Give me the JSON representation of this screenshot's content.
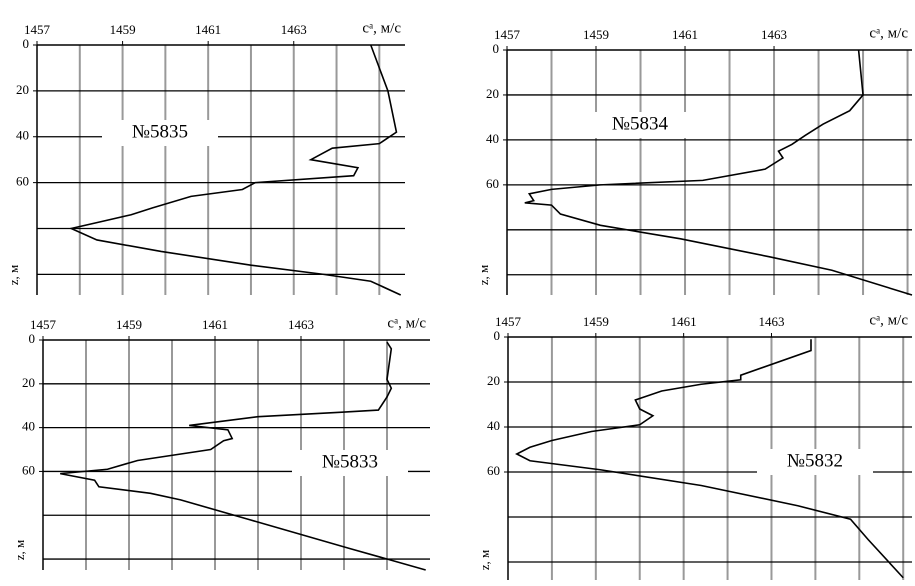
{
  "chart_data": [
    {
      "type": "line",
      "xlabel": "cᵃ, м/с",
      "ylabel": "z, м",
      "annotation": "№5835",
      "xlim": [
        1457,
        1465.6
      ],
      "xticks": [
        1457,
        1459,
        1461,
        1463
      ],
      "xgrid": [
        1458,
        1459,
        1460,
        1461,
        1462,
        1463,
        1464,
        1465
      ],
      "ylim": [
        0,
        109
      ],
      "yticks": [
        0,
        20,
        40,
        60
      ],
      "ygrid": [
        20,
        40,
        60,
        80,
        100
      ],
      "x": [
        1464.8,
        1465.2,
        1465.4,
        1465.0,
        1463.9,
        1463.6,
        1463.4,
        1464.5,
        1464.4,
        1462.1,
        1461.8,
        1460.6,
        1459.7,
        1459.2,
        1458.5,
        1457.8,
        1458.4,
        1459.9,
        1462.0,
        1463.7,
        1464.8,
        1465.5
      ],
      "values": [
        0,
        20,
        38,
        43,
        45,
        48,
        50,
        53.5,
        57,
        60,
        63,
        66,
        71,
        74,
        77,
        80,
        85,
        90,
        96,
        100,
        103,
        109
      ]
    },
    {
      "type": "line",
      "xlabel": "cᵃ, м/с",
      "ylabel": "z, м",
      "annotation": "№5834",
      "xlim": [
        1457,
        1466.1
      ],
      "xticks": [
        1457,
        1459,
        1461,
        1463
      ],
      "xgrid": [
        1458,
        1459,
        1460,
        1461,
        1462,
        1463,
        1464,
        1465,
        1466
      ],
      "ylim": [
        0,
        109
      ],
      "yticks": [
        0,
        20,
        40,
        60
      ],
      "ygrid": [
        20,
        40,
        60,
        80,
        100
      ],
      "x": [
        1464.9,
        1465.0,
        1464.7,
        1464.1,
        1463.7,
        1463.4,
        1463.1,
        1463.2,
        1462.8,
        1461.4,
        1459.1,
        1458.0,
        1457.5,
        1457.6,
        1457.4,
        1458.0,
        1458.2,
        1459.1,
        1460.9,
        1462.9,
        1464.3,
        1466.1
      ],
      "values": [
        0,
        20,
        27,
        33,
        38,
        42,
        45,
        48,
        53,
        58,
        60,
        62,
        64,
        67,
        68,
        69,
        73,
        78,
        84,
        92,
        98,
        109
      ]
    },
    {
      "type": "line",
      "xlabel": "cᵃ, м/с",
      "ylabel": "z, м",
      "annotation": "№5833",
      "xlim": [
        1457,
        1466
      ],
      "xticks": [
        1457,
        1459,
        1461,
        1463
      ],
      "xgrid": [
        1458,
        1459,
        1460,
        1461,
        1462,
        1463,
        1464,
        1465
      ],
      "ylim": [
        0,
        105
      ],
      "yticks": [
        0,
        20,
        40,
        60
      ],
      "ygrid": [
        20,
        40,
        60,
        80,
        100
      ],
      "x": [
        1465.0,
        1465.1,
        1465.0,
        1465.1,
        1465.0,
        1464.8,
        1463.9,
        1462.0,
        1460.4,
        1461.3,
        1461.4,
        1461.2,
        1460.9,
        1459.2,
        1458.5,
        1457.4,
        1458.2,
        1458.3,
        1459.5,
        1460.2,
        1461.8,
        1464.1,
        1465.9
      ],
      "values": [
        1,
        4,
        18,
        22,
        26,
        32,
        33,
        35,
        39,
        41,
        45,
        46,
        50,
        55,
        59,
        61,
        64,
        67,
        70,
        73,
        82,
        95,
        105
      ]
    },
    {
      "type": "line",
      "xlabel": "cᵃ, м/с",
      "ylabel": "z, м",
      "annotation": "№5832",
      "xlim": [
        1457,
        1466.2
      ],
      "xticks": [
        1457,
        1459,
        1461,
        1463
      ],
      "xgrid": [
        1458,
        1459,
        1460,
        1461,
        1462,
        1463,
        1464,
        1465,
        1466
      ],
      "ylim": [
        0,
        108
      ],
      "yticks": [
        0,
        20,
        40,
        60
      ],
      "ygrid": [
        20,
        40,
        60,
        80,
        100
      ],
      "x": [
        1463.9,
        1463.9,
        1462.3,
        1462.3,
        1461.4,
        1460.5,
        1459.9,
        1460.0,
        1460.3,
        1460.0,
        1458.9,
        1458.0,
        1457.5,
        1457.2,
        1457.5,
        1459.1,
        1461.4,
        1463.6,
        1464.8,
        1465.2,
        1466.0
      ],
      "values": [
        1,
        6,
        17,
        19,
        21,
        24,
        28,
        32,
        35,
        39,
        42,
        46,
        49,
        52,
        55,
        59,
        66,
        75,
        81,
        90,
        107
      ]
    }
  ]
}
